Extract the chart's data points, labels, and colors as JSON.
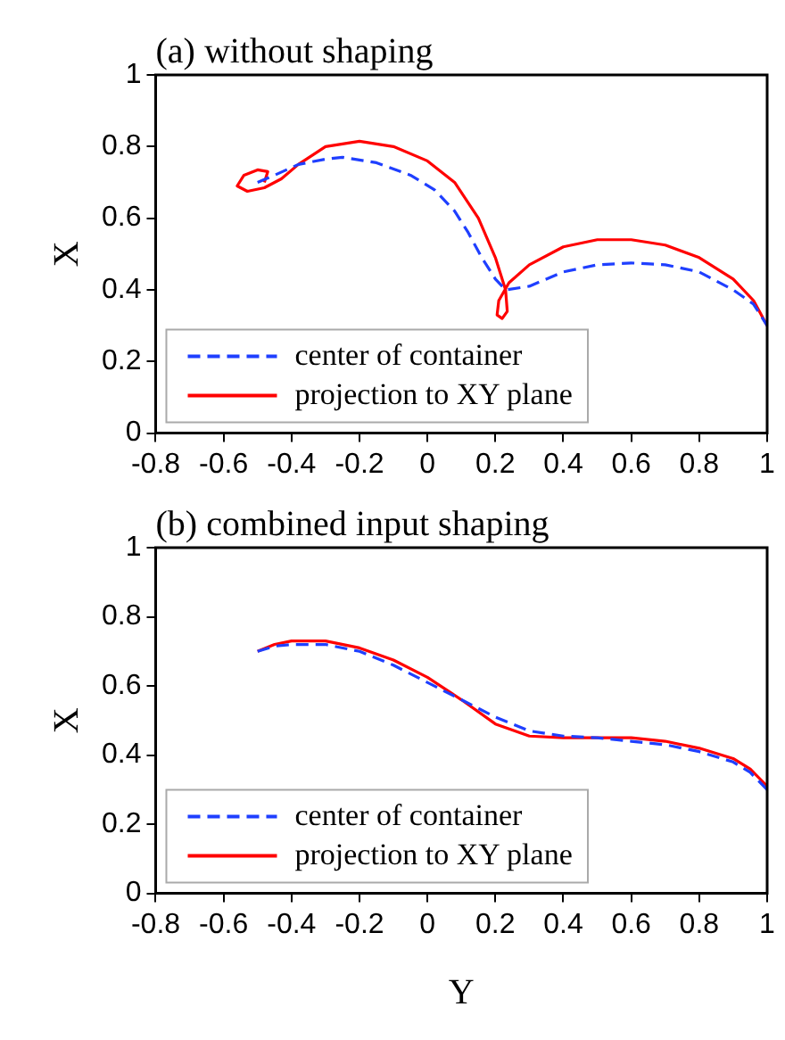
{
  "chart_data": [
    {
      "type": "line",
      "title": "(a) without shaping",
      "ylabel": "X",
      "xlim": [
        -0.8,
        1
      ],
      "xticks": [
        -0.8,
        -0.6,
        -0.4,
        -0.2,
        0,
        0.2,
        0.4,
        0.6,
        0.8,
        1
      ],
      "ylim": [
        0,
        1
      ],
      "yticks": [
        0,
        0.2,
        0.4,
        0.6,
        0.8,
        1
      ],
      "grid": false,
      "legend": "bottom left",
      "series": [
        {
          "name": "center of container",
          "color": "#1f3fff",
          "line_style": "dashed",
          "x": [
            -0.5,
            -0.45,
            -0.38,
            -0.3,
            -0.25,
            -0.15,
            -0.05,
            0.02,
            0.08,
            0.12,
            0.16,
            0.2,
            0.23,
            0.3,
            0.4,
            0.5,
            0.6,
            0.7,
            0.8,
            0.9,
            0.96,
            1.0
          ],
          "values": [
            0.7,
            0.72,
            0.75,
            0.765,
            0.77,
            0.755,
            0.72,
            0.68,
            0.62,
            0.56,
            0.49,
            0.43,
            0.4,
            0.41,
            0.45,
            0.47,
            0.475,
            0.47,
            0.45,
            0.4,
            0.36,
            0.3
          ]
        },
        {
          "name": "projection to XY plane",
          "color": "#ff0000",
          "line_style": "solid",
          "x": [
            -0.48,
            -0.47,
            -0.5,
            -0.54,
            -0.56,
            -0.53,
            -0.48,
            -0.43,
            -0.38,
            -0.3,
            -0.2,
            -0.1,
            0.0,
            0.08,
            0.15,
            0.2,
            0.23,
            0.235,
            0.22,
            0.205,
            0.21,
            0.24,
            0.3,
            0.4,
            0.5,
            0.6,
            0.7,
            0.8,
            0.9,
            0.96,
            1.0
          ],
          "values": [
            0.7,
            0.73,
            0.735,
            0.72,
            0.69,
            0.675,
            0.685,
            0.71,
            0.75,
            0.8,
            0.815,
            0.8,
            0.76,
            0.7,
            0.6,
            0.49,
            0.4,
            0.34,
            0.32,
            0.33,
            0.37,
            0.42,
            0.47,
            0.52,
            0.54,
            0.54,
            0.525,
            0.49,
            0.43,
            0.37,
            0.3
          ]
        }
      ]
    },
    {
      "type": "line",
      "title": "(b) combined input shaping",
      "xlabel": "Y",
      "ylabel": "X",
      "xlim": [
        -0.8,
        1
      ],
      "xticks": [
        -0.8,
        -0.6,
        -0.4,
        -0.2,
        0,
        0.2,
        0.4,
        0.6,
        0.8,
        1
      ],
      "ylim": [
        0,
        1
      ],
      "yticks": [
        0,
        0.2,
        0.4,
        0.6,
        0.8,
        1
      ],
      "grid": false,
      "legend": "bottom left",
      "series": [
        {
          "name": "center of container",
          "color": "#1f3fff",
          "line_style": "dashed",
          "x": [
            -0.5,
            -0.45,
            -0.4,
            -0.3,
            -0.2,
            -0.1,
            0,
            0.1,
            0.2,
            0.3,
            0.4,
            0.5,
            0.6,
            0.7,
            0.8,
            0.9,
            0.95,
            1.0
          ],
          "values": [
            0.7,
            0.715,
            0.72,
            0.72,
            0.7,
            0.66,
            0.61,
            0.56,
            0.51,
            0.47,
            0.455,
            0.45,
            0.44,
            0.43,
            0.41,
            0.38,
            0.35,
            0.3
          ]
        },
        {
          "name": "projection to XY plane",
          "color": "#ff0000",
          "line_style": "solid",
          "x": [
            -0.5,
            -0.45,
            -0.4,
            -0.3,
            -0.2,
            -0.1,
            0,
            0.1,
            0.2,
            0.3,
            0.4,
            0.5,
            0.6,
            0.7,
            0.8,
            0.9,
            0.95,
            1.0
          ],
          "values": [
            0.7,
            0.72,
            0.73,
            0.73,
            0.71,
            0.675,
            0.625,
            0.56,
            0.49,
            0.455,
            0.45,
            0.45,
            0.45,
            0.44,
            0.42,
            0.39,
            0.36,
            0.31
          ]
        }
      ]
    }
  ]
}
